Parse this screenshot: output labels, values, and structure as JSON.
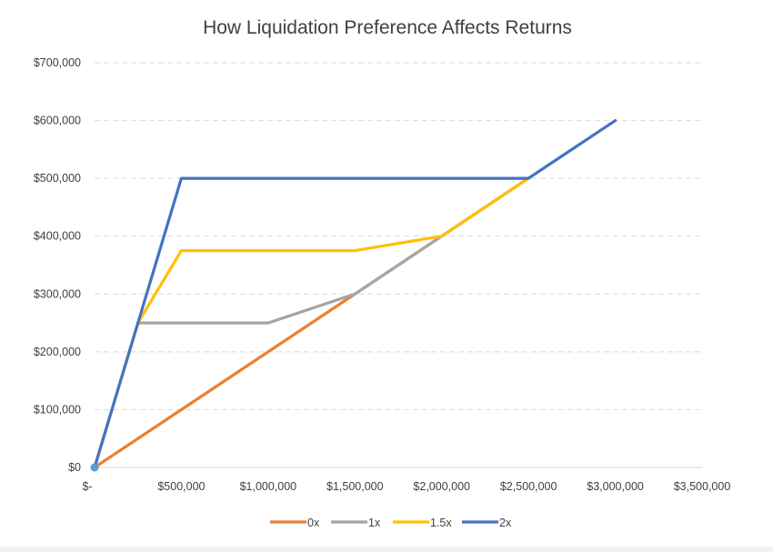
{
  "chart_data": {
    "type": "line",
    "title": "How Liquidation Preference Affects Returns",
    "xlabel": "",
    "ylabel": "",
    "xlim": [
      0,
      3500000
    ],
    "ylim": [
      0,
      700000
    ],
    "x_ticks": [
      0,
      500000,
      1000000,
      1500000,
      2000000,
      2500000,
      3000000,
      3500000
    ],
    "x_tick_labels": [
      "$-",
      "$500,000",
      "$1,000,000",
      "$1,500,000",
      "$2,000,000",
      "$2,500,000",
      "$3,000,000",
      "$3,500,000"
    ],
    "y_ticks": [
      0,
      100000,
      200000,
      300000,
      400000,
      500000,
      600000,
      700000
    ],
    "y_tick_labels": [
      "$0",
      "$100,000",
      "$200,000",
      "$300,000",
      "$400,000",
      "$500,000",
      "$600,000",
      "$700,000"
    ],
    "grid": "horizontal dashed",
    "legend_position": "bottom",
    "series": [
      {
        "name": "0x",
        "color": "#ED7D31",
        "points": [
          [
            0,
            0
          ],
          [
            1500000,
            300000
          ],
          [
            2000000,
            400000
          ],
          [
            2500000,
            500000
          ]
        ]
      },
      {
        "name": "1x",
        "color": "#A5A5A5",
        "points": [
          [
            0,
            0
          ],
          [
            250000,
            250000
          ],
          [
            1000000,
            250000
          ],
          [
            1500000,
            300000
          ],
          [
            2000000,
            400000
          ],
          [
            2500000,
            500000
          ]
        ]
      },
      {
        "name": "1.5x",
        "color": "#FFC000",
        "points": [
          [
            0,
            0
          ],
          [
            250000,
            250000
          ],
          [
            500000,
            375000
          ],
          [
            1500000,
            375000
          ],
          [
            2000000,
            400000
          ],
          [
            2500000,
            500000
          ]
        ]
      },
      {
        "name": "2x",
        "color": "#4472C4",
        "points": [
          [
            0,
            0
          ],
          [
            500000,
            500000
          ],
          [
            2500000,
            500000
          ],
          [
            3000000,
            600000
          ]
        ]
      }
    ],
    "origin_marker_color": "#5B9BD5"
  }
}
